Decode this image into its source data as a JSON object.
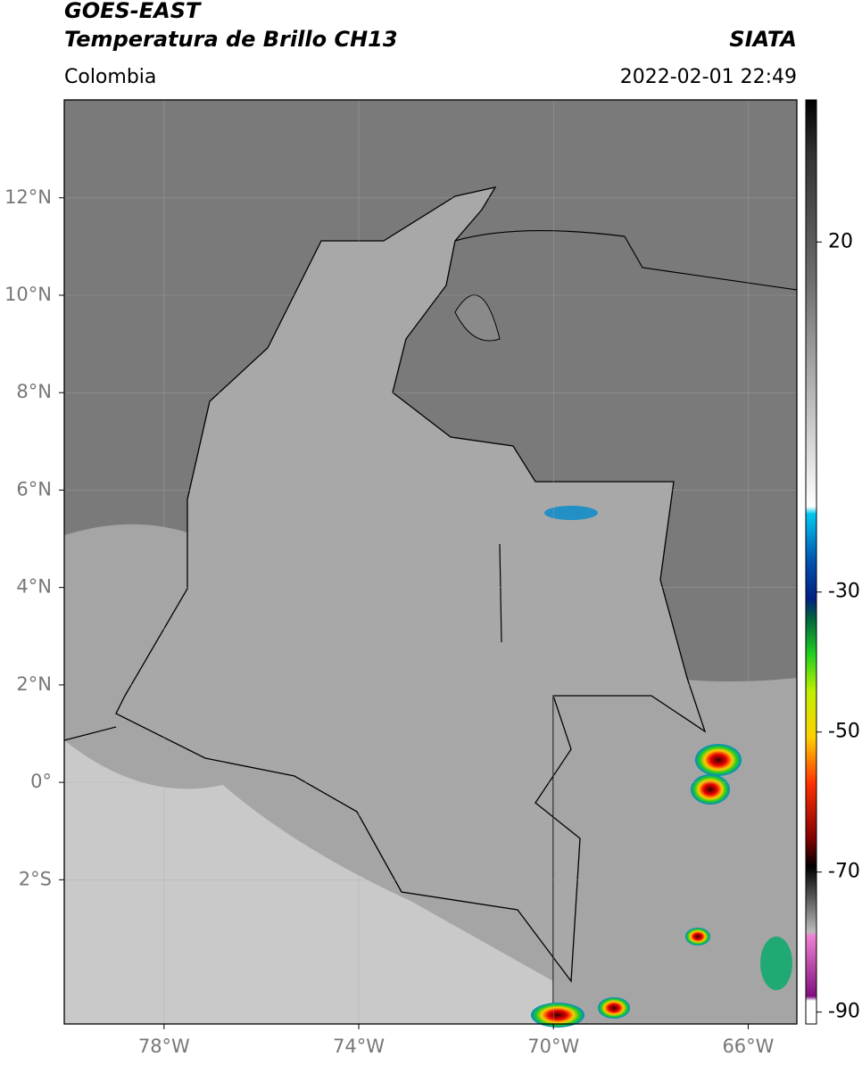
{
  "header": {
    "title": "GOES-EAST",
    "subtitle": "Temperatura de Brillo CH13",
    "region": "Colombia",
    "source": "SIATA",
    "timestamp": "2022-02-01 22:49"
  },
  "map": {
    "xlim": [
      -80.05,
      -65
    ],
    "ylim": [
      -4.96,
      14.01
    ],
    "xticks": [
      {
        "value": -78,
        "label": "78°W"
      },
      {
        "value": -74,
        "label": "74°W"
      },
      {
        "value": -70,
        "label": "70°W"
      },
      {
        "value": -66,
        "label": "66°W"
      }
    ],
    "yticks": [
      {
        "value": 12,
        "label": "12°N"
      },
      {
        "value": 10,
        "label": "10°N"
      },
      {
        "value": 8,
        "label": "8°N"
      },
      {
        "value": 6,
        "label": "6°N"
      },
      {
        "value": 4,
        "label": "4°N"
      },
      {
        "value": 2,
        "label": "2°N"
      },
      {
        "value": 0,
        "label": "0°"
      },
      {
        "value": -2,
        "label": "2°S"
      }
    ]
  },
  "colorbar": {
    "lim": [
      -91.7,
      40.3
    ],
    "ticks": [
      20,
      -30,
      -50,
      -70,
      -90
    ]
  }
}
